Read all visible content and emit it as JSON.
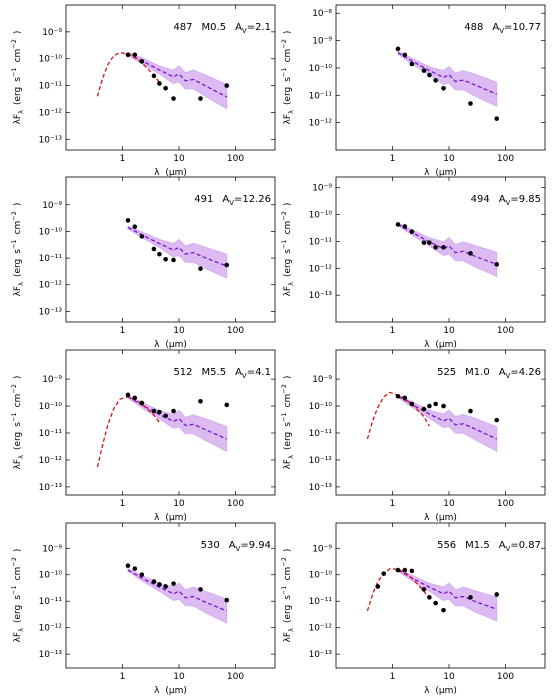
{
  "chart_data": [
    {
      "type": "scatter",
      "id_label": "487",
      "spectral_type": "M0.5",
      "extinction": {
        "symbol": "A",
        "subscript": "V",
        "value": "=2.1"
      },
      "xlabel": [
        "λ",
        "(μm)"
      ],
      "ylabel": [
        "λF",
        "λ",
        "(erg",
        "s",
        "−1",
        "cm",
        "−2",
        ")"
      ],
      "log_x": true,
      "log_y": true,
      "xlim": [
        0.1,
        500
      ],
      "ylim": [
        4e-14,
        1e-08
      ],
      "xticks": [
        1,
        10,
        100
      ],
      "yticks": [
        {
          "value": 1e-13,
          "label": "10⁻¹³"
        },
        {
          "value": 1e-12,
          "label": "10⁻¹²"
        },
        {
          "value": 1e-11,
          "label": "10⁻¹¹"
        },
        {
          "value": 1e-10,
          "label": "10⁻¹⁰"
        },
        {
          "value": 1e-09,
          "label": "10⁻⁹"
        }
      ],
      "observed": {
        "color": "#000000",
        "x": [
          1.25,
          1.65,
          2.2,
          3.6,
          4.5,
          5.8,
          8,
          24,
          70
        ],
        "values": [
          1.4e-10,
          1.4e-10,
          8e-11,
          2.3e-11,
          1.2e-11,
          8e-12,
          3.3e-12,
          3.3e-12,
          1e-11
        ]
      },
      "model": {
        "color": "#7a16d0",
        "band_color": "#d6aef0",
        "x": [
          1.25,
          2.2,
          4.5,
          8,
          10,
          13,
          18,
          30,
          70
        ],
        "values": [
          1.5e-10,
          8.5e-11,
          3.8e-11,
          2.1e-11,
          2.7e-11,
          1.5e-11,
          1.7e-11,
          9.5e-12,
          3.8e-12
        ],
        "upper": [
          1.7e-10,
          1.1e-10,
          5.4e-11,
          3.7e-11,
          5.4e-11,
          3e-11,
          3.8e-11,
          2.4e-11,
          1.1e-11
        ],
        "lower": [
          1.3e-10,
          6.7e-11,
          2.7e-11,
          1.2e-11,
          1.4e-11,
          7.5e-12,
          7.6e-12,
          3.8e-12,
          1.4e-12
        ]
      },
      "photosphere": {
        "color": "#dd1111",
        "x": [
          0.36,
          0.45,
          0.55,
          0.7,
          0.9,
          1.25,
          1.65,
          2.2,
          3.6,
          4.5
        ],
        "values": [
          4e-12,
          2e-11,
          6e-11,
          1.3e-10,
          1.7e-10,
          1.5e-10,
          1.1e-10,
          7e-11,
          2.5e-11,
          1.3e-11
        ]
      }
    },
    {
      "type": "scatter",
      "id_label": "488",
      "extinction": {
        "symbol": "A",
        "subscript": "V",
        "value": "=10.77"
      },
      "xlabel": [
        "λ",
        "(μm)"
      ],
      "ylabel": [
        "λF",
        "λ",
        "(erg",
        "s",
        "−1",
        "cm",
        "−2",
        ")"
      ],
      "log_x": true,
      "log_y": true,
      "xlim": [
        0.1,
        500
      ],
      "ylim": [
        1e-13,
        2e-08
      ],
      "xticks": [
        1,
        10,
        100
      ],
      "yticks": [
        {
          "value": 1e-12,
          "label": "10⁻¹²"
        },
        {
          "value": 1e-11,
          "label": "10⁻¹¹"
        },
        {
          "value": 1e-10,
          "label": "10⁻¹⁰"
        },
        {
          "value": 1e-09,
          "label": "10⁻⁹"
        },
        {
          "value": 1e-08,
          "label": "10⁻⁸"
        }
      ],
      "observed": {
        "color": "#000000",
        "x": [
          1.25,
          1.65,
          2.2,
          3.6,
          4.5,
          5.8,
          8,
          24,
          70
        ],
        "values": [
          5e-10,
          3e-10,
          1.4e-10,
          8e-11,
          5.5e-11,
          3.5e-11,
          1.8e-11,
          5e-12,
          1.4e-12
        ]
      },
      "model": {
        "color": "#7a16d0",
        "band_color": "#d6aef0",
        "x": [
          1.25,
          2.2,
          4.5,
          8,
          10,
          13,
          18,
          30,
          70
        ],
        "values": [
          3.6e-10,
          1.8e-10,
          8e-11,
          4.5e-11,
          5.7e-11,
          3.2e-11,
          3.6e-11,
          2.3e-11,
          1.1e-11
        ],
        "upper": [
          4e-10,
          2.3e-10,
          1.1e-10,
          8e-11,
          1.1e-10,
          6.4e-11,
          8e-11,
          5.7e-11,
          3e-11
        ],
        "lower": [
          3.2e-10,
          1.4e-10,
          5.7e-11,
          2.5e-11,
          2.8e-11,
          1.6e-11,
          1.6e-11,
          9e-12,
          4e-12
        ]
      }
    },
    {
      "type": "scatter",
      "id_label": "491",
      "extinction": {
        "symbol": "A",
        "subscript": "V",
        "value": "=12.26"
      },
      "xlabel": [
        "λ",
        "(μm)"
      ],
      "ylabel": [
        "λF",
        "λ",
        "(erg",
        "s",
        "−1",
        "cm",
        "−2",
        ")"
      ],
      "log_x": true,
      "log_y": true,
      "xlim": [
        0.1,
        500
      ],
      "ylim": [
        4e-14,
        1.1e-08
      ],
      "xticks": [
        1,
        10,
        100
      ],
      "yticks": [
        {
          "value": 1e-13,
          "label": "10⁻¹³"
        },
        {
          "value": 1e-12,
          "label": "10⁻¹²"
        },
        {
          "value": 1e-11,
          "label": "10⁻¹¹"
        },
        {
          "value": 1e-10,
          "label": "10⁻¹⁰"
        },
        {
          "value": 1e-09,
          "label": "10⁻⁹"
        }
      ],
      "observed": {
        "color": "#000000",
        "x": [
          1.25,
          1.65,
          2.2,
          3.6,
          4.5,
          5.8,
          8,
          24,
          70
        ],
        "values": [
          2.6e-10,
          1.5e-10,
          6.5e-11,
          2.2e-11,
          1.4e-11,
          9e-12,
          8.5e-12,
          4e-12,
          5.5e-12
        ]
      },
      "model": {
        "color": "#7a16d0",
        "band_color": "#d6aef0",
        "x": [
          1.25,
          2.2,
          4.5,
          8,
          10,
          13,
          18,
          30,
          70
        ],
        "values": [
          1.4e-10,
          7.5e-11,
          3.5e-11,
          2e-11,
          2.5e-11,
          1.4e-11,
          1.6e-11,
          1e-11,
          5e-12
        ],
        "upper": [
          1.6e-10,
          9.5e-11,
          5e-11,
          3.5e-11,
          5e-11,
          2.8e-11,
          3.6e-11,
          2.5e-11,
          1.4e-11
        ],
        "lower": [
          1.25e-10,
          6e-11,
          2.5e-11,
          1.1e-11,
          1.25e-11,
          7e-12,
          7e-12,
          4e-12,
          1.8e-12
        ]
      }
    },
    {
      "type": "scatter",
      "id_label": "494",
      "extinction": {
        "symbol": "A",
        "subscript": "V",
        "value": "=9.85"
      },
      "xlabel": [
        "λ",
        "(μm)"
      ],
      "ylabel": [
        "λF",
        "λ",
        "(erg",
        "s",
        "−1",
        "cm",
        "−2",
        ")"
      ],
      "log_x": true,
      "log_y": true,
      "xlim": [
        0.1,
        500
      ],
      "ylim": [
        1e-14,
        2.5e-09
      ],
      "xticks": [
        1,
        10,
        100
      ],
      "yticks": [
        {
          "value": 1e-13,
          "label": "10⁻¹³"
        },
        {
          "value": 1e-12,
          "label": "10⁻¹²"
        },
        {
          "value": 1e-11,
          "label": "10⁻¹¹"
        },
        {
          "value": 1e-10,
          "label": "10⁻¹⁰"
        },
        {
          "value": 1e-09,
          "label": "10⁻⁹"
        }
      ],
      "observed": {
        "color": "#000000",
        "x": [
          1.25,
          1.65,
          2.2,
          3.6,
          4.5,
          5.8,
          8,
          24,
          70
        ],
        "values": [
          4.3e-11,
          3.6e-11,
          2.3e-11,
          9e-12,
          9e-12,
          6e-12,
          6e-12,
          3.6e-12,
          1.4e-12
        ]
      },
      "model": {
        "color": "#7a16d0",
        "band_color": "#d6aef0",
        "x": [
          1.25,
          2.2,
          4.5,
          8,
          10,
          13,
          18,
          30,
          70
        ],
        "values": [
          4.3e-11,
          2.2e-11,
          9.6e-12,
          5.4e-12,
          6.8e-12,
          3.8e-12,
          4.3e-12,
          2.7e-12,
          1.4e-12
        ],
        "upper": [
          4.8e-11,
          2.8e-11,
          1.35e-11,
          9.6e-12,
          1.36e-11,
          7.6e-12,
          9.6e-12,
          6.8e-12,
          3.9e-12
        ],
        "lower": [
          3.8e-11,
          1.75e-11,
          6.8e-12,
          3e-12,
          3.4e-12,
          1.9e-12,
          1.9e-12,
          1.1e-12,
          5e-13
        ]
      }
    },
    {
      "type": "scatter",
      "id_label": "512",
      "spectral_type": "M5.5",
      "extinction": {
        "symbol": "A",
        "subscript": "V",
        "value": "=4.1"
      },
      "xlabel": [
        "λ",
        "(μm)"
      ],
      "ylabel": [
        "λF",
        "λ",
        "(erg",
        "s",
        "−1",
        "cm",
        "−2",
        ")"
      ],
      "log_x": true,
      "log_y": true,
      "xlim": [
        0.1,
        500
      ],
      "ylim": [
        5e-14,
        1.2e-08
      ],
      "xticks": [
        1,
        10,
        100
      ],
      "yticks": [
        {
          "value": 1e-13,
          "label": "10⁻¹³"
        },
        {
          "value": 1e-12,
          "label": "10⁻¹²"
        },
        {
          "value": 1e-11,
          "label": "10⁻¹¹"
        },
        {
          "value": 1e-10,
          "label": "10⁻¹⁰"
        },
        {
          "value": 1e-09,
          "label": "10⁻⁹"
        }
      ],
      "observed": {
        "color": "#000000",
        "x": [
          1.25,
          1.65,
          2.2,
          3.6,
          4.5,
          5.8,
          8,
          24,
          70
        ],
        "values": [
          2.6e-10,
          2e-10,
          1.3e-10,
          6.5e-11,
          6e-11,
          4.3e-11,
          6.5e-11,
          1.5e-10,
          1.1e-10
        ]
      },
      "model": {
        "color": "#7a16d0",
        "band_color": "#d6aef0",
        "x": [
          1.25,
          2.2,
          4.5,
          8,
          10,
          13,
          18,
          30,
          70
        ],
        "values": [
          2.2e-10,
          1.1e-10,
          4.8e-11,
          2.7e-11,
          3.4e-11,
          1.9e-11,
          2.1e-11,
          1.3e-11,
          6e-12
        ],
        "upper": [
          2.5e-10,
          1.4e-10,
          6.8e-11,
          4.8e-11,
          6.8e-11,
          3.8e-11,
          4.7e-11,
          3.3e-11,
          1.7e-11
        ],
        "lower": [
          2e-10,
          8.7e-11,
          3.4e-11,
          1.5e-11,
          1.7e-11,
          9.5e-12,
          9.4e-12,
          5.2e-12,
          2.1e-12
        ]
      },
      "photosphere": {
        "color": "#dd1111",
        "x": [
          0.36,
          0.45,
          0.55,
          0.7,
          0.9,
          1.25,
          1.65,
          2.2,
          3.6,
          4.5
        ],
        "values": [
          5.5e-13,
          4e-12,
          2e-11,
          8e-11,
          1.8e-10,
          2.2e-10,
          1.7e-10,
          1.2e-10,
          4.5e-11,
          2.5e-11
        ]
      }
    },
    {
      "type": "scatter",
      "id_label": "525",
      "spectral_type": "M1.0",
      "extinction": {
        "symbol": "A",
        "subscript": "V",
        "value": "=4.26"
      },
      "xlabel": [
        "λ",
        "(μm)"
      ],
      "ylabel": [
        "λF",
        "λ",
        "(erg",
        "s",
        "−1",
        "cm",
        "−2",
        ")"
      ],
      "log_x": true,
      "log_y": true,
      "xlim": [
        0.1,
        500
      ],
      "ylim": [
        5e-14,
        1.2e-08
      ],
      "xticks": [
        1,
        10,
        100
      ],
      "yticks": [
        {
          "value": 1e-13,
          "label": "10⁻¹³"
        },
        {
          "value": 1e-12,
          "label": "10⁻¹²"
        },
        {
          "value": 1e-11,
          "label": "10⁻¹¹"
        },
        {
          "value": 1e-10,
          "label": "10⁻¹⁰"
        },
        {
          "value": 1e-09,
          "label": "10⁻⁹"
        }
      ],
      "observed": {
        "color": "#000000",
        "x": [
          1.25,
          1.65,
          2.2,
          3.6,
          4.5,
          5.8,
          8,
          24,
          70
        ],
        "values": [
          2.3e-10,
          2e-10,
          1.2e-10,
          7.7e-11,
          1e-10,
          1.2e-10,
          1e-10,
          6.5e-11,
          3e-11
        ]
      },
      "model": {
        "color": "#7a16d0",
        "band_color": "#d6aef0",
        "x": [
          1.25,
          2.2,
          4.5,
          8,
          10,
          13,
          18,
          30,
          70
        ],
        "values": [
          2.3e-10,
          1.15e-10,
          5e-11,
          2.8e-11,
          3.5e-11,
          2e-11,
          2.2e-11,
          1.35e-11,
          6e-12
        ],
        "upper": [
          2.6e-10,
          1.45e-10,
          7e-11,
          5e-11,
          7e-11,
          4e-11,
          4.9e-11,
          3.4e-11,
          1.7e-11
        ],
        "lower": [
          2.05e-10,
          9e-11,
          3.5e-11,
          1.6e-11,
          1.75e-11,
          1e-11,
          9.8e-12,
          5.4e-12,
          2.1e-12
        ]
      },
      "photosphere": {
        "color": "#dd1111",
        "x": [
          0.36,
          0.45,
          0.55,
          0.7,
          0.9,
          1.25,
          1.65,
          2.2,
          3.6,
          4.5
        ],
        "values": [
          6e-12,
          3e-11,
          9e-11,
          2.2e-10,
          3.2e-10,
          2.5e-10,
          1.8e-10,
          1.2e-10,
          4e-11,
          1.8e-11
        ]
      }
    },
    {
      "type": "scatter",
      "id_label": "530",
      "extinction": {
        "symbol": "A",
        "subscript": "V",
        "value": "=9.94"
      },
      "xlabel": [
        "λ",
        "(μm)"
      ],
      "ylabel": [
        "λF",
        "λ",
        "(erg",
        "s",
        "−1",
        "cm",
        "−2",
        ")"
      ],
      "log_x": true,
      "log_y": true,
      "xlim": [
        0.1,
        500
      ],
      "ylim": [
        3e-14,
        9e-09
      ],
      "xticks": [
        1,
        10,
        100
      ],
      "yticks": [
        {
          "value": 1e-13,
          "label": "10⁻¹³"
        },
        {
          "value": 1e-12,
          "label": "10⁻¹²"
        },
        {
          "value": 1e-11,
          "label": "10⁻¹¹"
        },
        {
          "value": 1e-10,
          "label": "10⁻¹⁰"
        },
        {
          "value": 1e-09,
          "label": "10⁻⁹"
        }
      ],
      "observed": {
        "color": "#000000",
        "x": [
          1.25,
          1.65,
          2.2,
          3.6,
          4.5,
          5.8,
          8,
          24,
          70
        ],
        "values": [
          2.2e-10,
          1.7e-10,
          1e-10,
          5.5e-11,
          4.3e-11,
          3.6e-11,
          4.6e-11,
          2.8e-11,
          1.1e-11
        ]
      },
      "model": {
        "color": "#7a16d0",
        "band_color": "#d6aef0",
        "x": [
          1.25,
          2.2,
          4.5,
          8,
          10,
          13,
          18,
          30,
          70
        ],
        "values": [
          1.5e-10,
          7.5e-11,
          3.4e-11,
          1.9e-11,
          2.4e-11,
          1.35e-11,
          1.5e-11,
          9e-12,
          4.3e-12
        ],
        "upper": [
          1.7e-10,
          9.5e-11,
          4.8e-11,
          3.4e-11,
          4.8e-11,
          2.7e-11,
          3.4e-11,
          2.3e-11,
          1.2e-11
        ],
        "lower": [
          1.35e-10,
          6e-11,
          2.4e-11,
          1.07e-11,
          1.2e-11,
          6.8e-12,
          6.7e-12,
          3.6e-12,
          1.5e-12
        ]
      }
    },
    {
      "type": "scatter",
      "id_label": "556",
      "spectral_type": "M1.5",
      "extinction": {
        "symbol": "A",
        "subscript": "V",
        "value": "=0.87"
      },
      "xlabel": [
        "λ",
        "(μm)"
      ],
      "ylabel": [
        "λF",
        "λ",
        "(erg",
        "s",
        "−1",
        "cm",
        "−2",
        ")"
      ],
      "log_x": true,
      "log_y": true,
      "xlim": [
        0.1,
        500
      ],
      "ylim": [
        3e-14,
        9e-09
      ],
      "xticks": [
        1,
        10,
        100
      ],
      "yticks": [
        {
          "value": 1e-13,
          "label": "10⁻¹³"
        },
        {
          "value": 1e-12,
          "label": "10⁻¹²"
        },
        {
          "value": 1e-11,
          "label": "10⁻¹¹"
        },
        {
          "value": 1e-10,
          "label": "10⁻¹⁰"
        },
        {
          "value": 1e-09,
          "label": "10⁻⁹"
        }
      ],
      "observed": {
        "color": "#000000",
        "x": [
          0.55,
          0.7,
          1.25,
          1.65,
          2.2,
          3.6,
          4.5,
          5.8,
          8,
          24,
          70
        ],
        "values": [
          3.6e-11,
          1.1e-10,
          1.5e-10,
          1.5e-10,
          1.4e-10,
          2.8e-11,
          1.4e-11,
          8.5e-12,
          4.6e-12,
          1.4e-11,
          1.8e-11
        ]
      },
      "model": {
        "color": "#7a16d0",
        "band_color": "#d6aef0",
        "x": [
          1.25,
          2.2,
          4.5,
          8,
          10,
          13,
          18,
          30,
          70
        ],
        "values": [
          1.5e-10,
          7.5e-11,
          3.4e-11,
          1.9e-11,
          2.4e-11,
          1.35e-11,
          1.5e-11,
          9.5e-12,
          5e-12
        ],
        "upper": [
          1.7e-10,
          9.5e-11,
          4.8e-11,
          3.4e-11,
          4.8e-11,
          2.7e-11,
          3.4e-11,
          2.4e-11,
          1.4e-11
        ],
        "lower": [
          1.35e-10,
          6e-11,
          2.4e-11,
          1.07e-11,
          1.2e-11,
          6.8e-12,
          6.7e-12,
          3.8e-12,
          1.8e-12
        ]
      },
      "photosphere": {
        "color": "#dd1111",
        "x": [
          0.36,
          0.45,
          0.55,
          0.7,
          0.9,
          1.25,
          1.65,
          2.2,
          3.6,
          4.5
        ],
        "values": [
          4.3e-12,
          2e-11,
          5.5e-11,
          1.1e-10,
          1.7e-10,
          1.6e-10,
          1.2e-10,
          7.5e-11,
          2.4e-11,
          1.2e-11
        ]
      }
    }
  ]
}
